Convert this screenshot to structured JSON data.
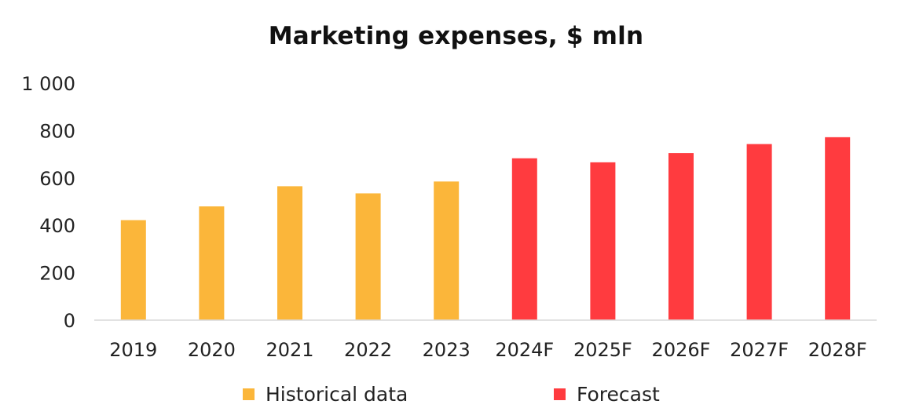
{
  "chart_data": {
    "type": "bar",
    "title": "Marketing expenses, $ mln",
    "categories": [
      "2019",
      "2020",
      "2021",
      "2022",
      "2023",
      "2024F",
      "2025F",
      "2026F",
      "2027F",
      "2028F"
    ],
    "series": [
      {
        "name": "Historical data",
        "color": "#FBB63A",
        "values": [
          422,
          480,
          565,
          535,
          585,
          null,
          null,
          null,
          null,
          null
        ]
      },
      {
        "name": "Forecast",
        "color": "#FF3B3F",
        "values": [
          null,
          null,
          null,
          null,
          null,
          683,
          666,
          705,
          743,
          772
        ]
      }
    ],
    "yticks": [
      "0",
      "200",
      "400",
      "600",
      "800",
      "1 000"
    ],
    "ylim": [
      0,
      1000
    ],
    "grid": false,
    "legend_position": "bottom"
  }
}
